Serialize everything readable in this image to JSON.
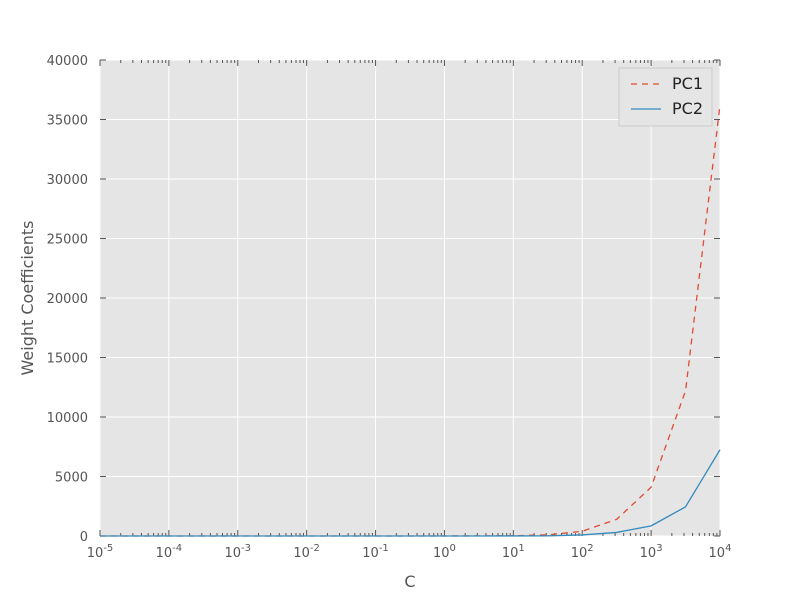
{
  "chart_data": {
    "type": "line",
    "title": "",
    "xlabel": "C",
    "ylabel": "Weight Coefficients",
    "xscale": "log",
    "xlim": [
      1e-05,
      10000
    ],
    "ylim": [
      0,
      40000
    ],
    "grid": true,
    "legend_position": "top-right",
    "x_tick_labels": [
      {
        "base": "10",
        "exp": "-5"
      },
      {
        "base": "10",
        "exp": "-4"
      },
      {
        "base": "10",
        "exp": "-3"
      },
      {
        "base": "10",
        "exp": "-2"
      },
      {
        "base": "10",
        "exp": "-1"
      },
      {
        "base": "10",
        "exp": "0"
      },
      {
        "base": "10",
        "exp": "1"
      },
      {
        "base": "10",
        "exp": "2"
      },
      {
        "base": "10",
        "exp": "3"
      },
      {
        "base": "10",
        "exp": "4"
      }
    ],
    "y_tick_labels": [
      "0",
      "5000",
      "10000",
      "15000",
      "20000",
      "25000",
      "30000",
      "35000",
      "40000"
    ],
    "x": [
      1e-05,
      3.16e-05,
      0.0001,
      0.000316,
      0.001,
      0.00316,
      0.01,
      0.0316,
      0.1,
      0.316,
      1,
      3.16,
      10,
      31.6,
      100,
      316,
      1000,
      3160,
      10000
    ],
    "series": [
      {
        "name": "PC1",
        "color": "#e24a33",
        "linestyle": "dashed",
        "values": [
          0,
          0,
          0,
          0,
          0,
          0,
          0,
          0,
          0,
          0,
          2,
          8,
          20,
          100,
          400,
          1400,
          4100,
          12200,
          36200
        ]
      },
      {
        "name": "PC2",
        "color": "#348abd",
        "linestyle": "solid",
        "values": [
          0,
          0,
          0,
          0,
          0,
          0,
          0,
          0,
          0,
          0,
          0,
          2,
          5,
          15,
          90,
          300,
          850,
          2450,
          7250
        ]
      }
    ]
  }
}
